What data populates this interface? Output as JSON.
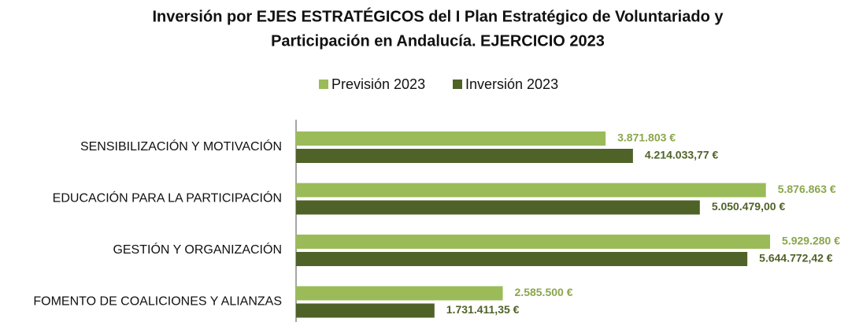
{
  "chart_data": {
    "type": "barh",
    "title": [
      "Inversión por EJES ESTRATÉGICOS del  I Plan Estratégico de Voluntariado y",
      "Participación en Andalucía. EJERCICIO 2023"
    ],
    "categories": [
      "SENSIBILIZACIÓN Y MOTIVACIÓN",
      "EDUCACIÓN PARA LA PARTICIPACIÓN",
      "GESTIÓN Y ORGANIZACIÓN",
      "FOMENTO DE COALICIONES Y ALIANZAS"
    ],
    "series": [
      {
        "name": "Previsión 2023",
        "color": "#9bbb59",
        "label_color": "#8aa64c",
        "values": [
          3871803,
          5876863,
          5929280,
          2585500
        ],
        "value_labels": [
          "3.871.803 €",
          "5.876.863 €",
          "5.929.280 €",
          "2.585.500 €"
        ]
      },
      {
        "name": "Inversión 2023",
        "color": "#4f6228",
        "label_color": "#4f6228",
        "values": [
          4214033.77,
          5050479.0,
          5644772.42,
          1731411.35
        ],
        "value_labels": [
          "4.214.033,77 €",
          "5.050.479,00 €",
          "5.644.772,42 €",
          "1.731.411,35 €"
        ]
      }
    ],
    "xlim": [
      0,
      6500000
    ],
    "legend": "top"
  }
}
